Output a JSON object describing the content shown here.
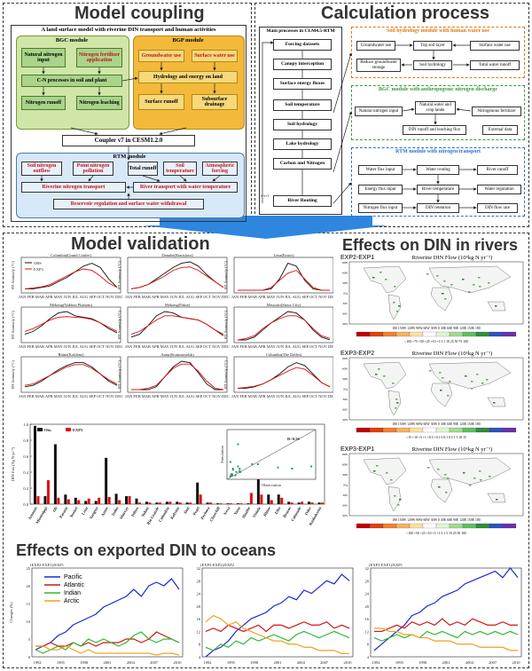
{
  "coupling": {
    "title": "Model coupling",
    "subtitle": "A land surface model with riverine DIN transport and human activities",
    "bgc": {
      "title": "BGC module",
      "natural": "Natural nitrogen input",
      "fert": "Nitrogen fertilizer application",
      "cn": "C-N processes in soil and plant",
      "runoff": "Nitrogen runoff",
      "leach": "Nitrogen leaching"
    },
    "bgp": {
      "title": "BGP module",
      "gw": "Groundwater use",
      "sw": "Surface water use",
      "hydro": "Hydrology and energy on land",
      "sr": "Surface runoff",
      "sub": "Subsurface drainage"
    },
    "coupler": "Coupler v7 in CESM1.2.0",
    "rtm": {
      "title": "RTM module",
      "sno": "Soil nitrogen outflow",
      "pnp": "Point nitrogen pollution",
      "tr": "Total runoff",
      "st": "Soil temperature",
      "af": "Atmospheric forcing",
      "rnt": "Riverine nitrogen transport",
      "rtw": "River transport with water temperature",
      "res": "Reservoir regulation and surface water withdrawal"
    }
  },
  "calc": {
    "title": "Calculation process",
    "main": {
      "title": "Main processes in CLM4.5-RTM",
      "items": [
        "Forcing datasets",
        "Canopy interception",
        "Surface energy fluxes",
        "Soil temperature",
        "Soil hydrology",
        "Lake hydrology",
        "Carbon and Nitrogen",
        "River Routing"
      ],
      "loop": "t=t+1"
    },
    "soil": {
      "title": "Soil hydrology module with human water use",
      "gw": "Groundwater use",
      "top": "Top soil layer",
      "sw": "Surface water use",
      "reduce": "Reduce groundwater storage",
      "sh": "Soil hydrology",
      "twr": "Total water runoff"
    },
    "bgc": {
      "title": "BGC module with anthropogenic nitrogen discharge",
      "nni": "Natural nitrogen input",
      "nwc": "Natural water and crop lands",
      "nf": "Nitrogenous fertilizer",
      "din": "DIN runoff and leaching flux",
      "ext": "External data"
    },
    "rtm": {
      "title": "RTM module with nitrogen transport",
      "wfi": "Water flux input",
      "wr": "Water routing",
      "rr": "River runoff",
      "efi": "Energy flux input",
      "rt": "River temperature",
      "wreg": "Water regulation",
      "nfi": "Nitrogen flux input",
      "dr": "DIN retention",
      "dfr": "DIN flow rate"
    }
  },
  "validation": {
    "title": "Model validation",
    "legend": {
      "obs": "OBS",
      "exp": "EXP3"
    },
    "ylabel": "RT Anomaly (°C)",
    "months": "JAN FEB MAR APR MAY JUN JUL AUG SEP OCT NOV DEC",
    "panels": [
      "Columbia(Grand Coulee)",
      "Danube(Bratislava)",
      "Lena(Kusur)",
      "Mekong(Nakhon Phanom)",
      "Mekong(Pakse)",
      "Missouri(Sioux City)",
      "Rhine(Koblenz)",
      "Amur(Komsomolsk)",
      "Columbia(The Dalles)"
    ],
    "bar": {
      "legend_obs": "Obs",
      "legend_exp": "EXP3",
      "ylabel": "DIN flux (Tg N yr⁻¹)",
      "r": "R=0.56",
      "xlabel": "Observation",
      "ylabel_in": "Simulation",
      "yticks": [
        "1.0",
        "0.8",
        "0.6",
        "0.4",
        "0.2",
        "0.0"
      ],
      "rivers": [
        "Amazon",
        "Mississippi",
        "Ob",
        "Parana",
        "Yenisei",
        "Lena",
        "Yangtze",
        "Amur",
        "Indus",
        "Murray",
        "Yellow",
        "Yukon",
        "Rio Grande",
        "Columbia",
        "Kolyma",
        "Don",
        "Pearl",
        "Pechora",
        "Churchill",
        "Neva",
        "Yana",
        "Huaihe",
        "Vistula",
        "Rhine",
        "Elbe",
        "Brazos",
        "Colorado",
        "Oder",
        "Kuskokwim"
      ],
      "obs": [
        0.98,
        0.1,
        0.75,
        0.12,
        0.08,
        0.04,
        0.04,
        0.58,
        0.13,
        0.1,
        0.07,
        0.03,
        0.02,
        0.03,
        0.03,
        0.02,
        0.27,
        0.02,
        0.01,
        0.01,
        0.01,
        0.01,
        0.34,
        0.12,
        0.12,
        0.03,
        0.02,
        0.03,
        0.02
      ],
      "exp": [
        0.1,
        0.3,
        0.08,
        0.06,
        0.05,
        0.07,
        0.08,
        0.09,
        0.05,
        0.1,
        0.02,
        0.02,
        0.02,
        0.03,
        0.02,
        0.02,
        0.12,
        0.02,
        0.01,
        0.01,
        0.01,
        0.14,
        0.12,
        0.05,
        0.08,
        0.02,
        0.03,
        0.02,
        0.02
      ]
    }
  },
  "maps": {
    "title": "Effects on DIN in rivers",
    "maptitle": "Riverine DIN Flow (10⁶kg N yr⁻¹)",
    "labels": [
      "EXP2-EXP1",
      "EXP3-EXP2",
      "EXP3-EXP1"
    ],
    "lon": "180 150W 120W 90W 60W 30W 0 30E 60E 90E 120E 150E 180",
    "lat": [
      "90N",
      "60N",
      "30N",
      "EQ",
      "30S",
      "60S",
      "90S"
    ],
    "cb1": "<100 +75 +50 +25 +10 +1 0 1 10 25 50 75 100",
    "cb2": "<15 +10 +5 +1 +0.5 +0.1 0 0.1 0.5 1 5 10 15",
    "cb3": "<100 +50 +25 +10 +5 +1 0 1 5 10 25 50 100"
  },
  "oceans": {
    "title": "Effects on exported DIN to oceans",
    "p1": "(EXP2-EXP1)/EXP1",
    "p2": "(EXP3-EXP2)/EXP2",
    "p3": "(EXP3-EXP1)/EXP1",
    "ylabel": "Changes (%)",
    "legend": [
      "Pacific",
      "Atlantic",
      "Indian",
      "Arctic"
    ],
    "colors": [
      "#1a2ad6",
      "#d01515",
      "#2fb82f",
      "#f0a020"
    ],
    "xticks": [
      "1992",
      "1995",
      "1998",
      "2001",
      "2004",
      "2007",
      "2010"
    ],
    "y1": [
      "25",
      "20",
      "15",
      "10",
      "5",
      "0"
    ],
    "y2": [
      "32",
      "28",
      "24",
      "20",
      "16",
      "12",
      "8",
      "4"
    ],
    "y3": [
      "32",
      "28",
      "24",
      "20",
      "16",
      "12",
      "8",
      "4"
    ]
  }
}
